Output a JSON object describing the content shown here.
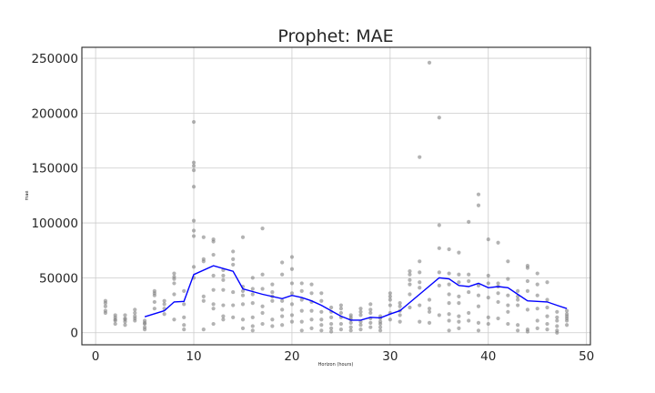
{
  "chart_data": {
    "type": "scatter",
    "title": "Prophet: MAE",
    "xlabel": "Horizon (hours)",
    "ylabel": "mae",
    "xlim": [
      -1.4,
      50.4
    ],
    "ylim": [
      -11000,
      260000
    ],
    "xticks": [
      0,
      10,
      20,
      30,
      40,
      50
    ],
    "yticks": [
      0,
      50000,
      100000,
      150000,
      200000,
      250000
    ],
    "grid": true,
    "colors": {
      "points": "#808080",
      "line": "#0000ff"
    },
    "points": [
      [
        1,
        20000
      ],
      [
        1,
        24000
      ],
      [
        1,
        27000
      ],
      [
        1,
        29000
      ],
      [
        1,
        18000
      ],
      [
        2,
        8000
      ],
      [
        2,
        12000
      ],
      [
        2,
        14000
      ],
      [
        2,
        16000
      ],
      [
        2,
        11000
      ],
      [
        3,
        7000
      ],
      [
        3,
        10000
      ],
      [
        3,
        13000
      ],
      [
        3,
        16000
      ],
      [
        3,
        12000
      ],
      [
        4,
        11000
      ],
      [
        4,
        15000
      ],
      [
        4,
        18000
      ],
      [
        4,
        21000
      ],
      [
        4,
        13000
      ],
      [
        5,
        5000
      ],
      [
        5,
        8000
      ],
      [
        5,
        11000
      ],
      [
        5,
        3000
      ],
      [
        5,
        9000
      ],
      [
        6,
        28000
      ],
      [
        6,
        34000
      ],
      [
        6,
        36000
      ],
      [
        6,
        38000
      ],
      [
        6,
        22000
      ],
      [
        7,
        17000
      ],
      [
        7,
        22000
      ],
      [
        7,
        26000
      ],
      [
        7,
        29000
      ],
      [
        8,
        12000
      ],
      [
        8,
        35000
      ],
      [
        8,
        45000
      ],
      [
        8,
        49000
      ],
      [
        8,
        51000
      ],
      [
        8,
        54000
      ],
      [
        9,
        3000
      ],
      [
        9,
        7000
      ],
      [
        9,
        14000
      ],
      [
        9,
        26000
      ],
      [
        9,
        38000
      ],
      [
        10,
        192000
      ],
      [
        10,
        155000
      ],
      [
        10,
        152000
      ],
      [
        10,
        148000
      ],
      [
        10,
        133000
      ],
      [
        10,
        102000
      ],
      [
        10,
        93000
      ],
      [
        10,
        88000
      ],
      [
        10,
        60000
      ],
      [
        10,
        50000
      ],
      [
        11,
        3000
      ],
      [
        11,
        29000
      ],
      [
        11,
        33000
      ],
      [
        11,
        65000
      ],
      [
        11,
        67000
      ],
      [
        11,
        87000
      ],
      [
        12,
        8000
      ],
      [
        12,
        22000
      ],
      [
        12,
        26000
      ],
      [
        12,
        39000
      ],
      [
        12,
        52000
      ],
      [
        12,
        71000
      ],
      [
        12,
        83000
      ],
      [
        12,
        85000
      ],
      [
        13,
        12000
      ],
      [
        13,
        15000
      ],
      [
        13,
        25000
      ],
      [
        13,
        39000
      ],
      [
        13,
        48000
      ],
      [
        13,
        52000
      ],
      [
        13,
        57000
      ],
      [
        14,
        14000
      ],
      [
        14,
        25000
      ],
      [
        14,
        37000
      ],
      [
        14,
        62000
      ],
      [
        14,
        67000
      ],
      [
        14,
        74000
      ],
      [
        15,
        4000
      ],
      [
        15,
        12000
      ],
      [
        15,
        26000
      ],
      [
        15,
        34000
      ],
      [
        15,
        38000
      ],
      [
        15,
        42000
      ],
      [
        15,
        87000
      ],
      [
        16,
        2000
      ],
      [
        16,
        6000
      ],
      [
        16,
        14000
      ],
      [
        16,
        27000
      ],
      [
        16,
        35000
      ],
      [
        16,
        40000
      ],
      [
        16,
        50000
      ],
      [
        17,
        8000
      ],
      [
        17,
        18000
      ],
      [
        17,
        24000
      ],
      [
        17,
        40000
      ],
      [
        17,
        53000
      ],
      [
        17,
        95000
      ],
      [
        18,
        6000
      ],
      [
        18,
        12000
      ],
      [
        18,
        29000
      ],
      [
        18,
        33000
      ],
      [
        18,
        37000
      ],
      [
        18,
        44000
      ],
      [
        19,
        7000
      ],
      [
        19,
        15000
      ],
      [
        19,
        21000
      ],
      [
        19,
        29000
      ],
      [
        19,
        53000
      ],
      [
        19,
        64000
      ],
      [
        20,
        10000
      ],
      [
        20,
        16000
      ],
      [
        20,
        26000
      ],
      [
        20,
        36000
      ],
      [
        20,
        45000
      ],
      [
        20,
        58000
      ],
      [
        20,
        69000
      ],
      [
        21,
        2000
      ],
      [
        21,
        10000
      ],
      [
        21,
        20000
      ],
      [
        21,
        30000
      ],
      [
        21,
        38000
      ],
      [
        21,
        45000
      ],
      [
        22,
        4000
      ],
      [
        22,
        12000
      ],
      [
        22,
        20000
      ],
      [
        22,
        28000
      ],
      [
        22,
        36000
      ],
      [
        22,
        44000
      ],
      [
        23,
        2000
      ],
      [
        23,
        7000
      ],
      [
        23,
        12000
      ],
      [
        23,
        19000
      ],
      [
        23,
        29000
      ],
      [
        23,
        36000
      ],
      [
        24,
        1000
      ],
      [
        24,
        4000
      ],
      [
        24,
        8000
      ],
      [
        24,
        14000
      ],
      [
        24,
        19000
      ],
      [
        24,
        23000
      ],
      [
        25,
        3000
      ],
      [
        25,
        8000
      ],
      [
        25,
        14000
      ],
      [
        25,
        18000
      ],
      [
        25,
        22000
      ],
      [
        25,
        25000
      ],
      [
        26,
        2000
      ],
      [
        26,
        5000
      ],
      [
        26,
        9000
      ],
      [
        26,
        12000
      ],
      [
        26,
        14000
      ],
      [
        26,
        16000
      ],
      [
        27,
        3000
      ],
      [
        27,
        7000
      ],
      [
        27,
        10000
      ],
      [
        27,
        16000
      ],
      [
        27,
        19000
      ],
      [
        27,
        22000
      ],
      [
        28,
        5000
      ],
      [
        28,
        9000
      ],
      [
        28,
        13000
      ],
      [
        28,
        18000
      ],
      [
        28,
        21000
      ],
      [
        28,
        26000
      ],
      [
        29,
        2000
      ],
      [
        29,
        5000
      ],
      [
        29,
        8000
      ],
      [
        29,
        10000
      ],
      [
        29,
        13000
      ],
      [
        29,
        15000
      ],
      [
        30,
        12000
      ],
      [
        30,
        18000
      ],
      [
        30,
        25000
      ],
      [
        30,
        30000
      ],
      [
        30,
        33000
      ],
      [
        30,
        36000
      ],
      [
        31,
        10000
      ],
      [
        31,
        16000
      ],
      [
        31,
        20000
      ],
      [
        31,
        24000
      ],
      [
        31,
        27000
      ],
      [
        32,
        23000
      ],
      [
        32,
        35000
      ],
      [
        32,
        44000
      ],
      [
        32,
        48000
      ],
      [
        32,
        53000
      ],
      [
        32,
        56000
      ],
      [
        33,
        10000
      ],
      [
        33,
        25000
      ],
      [
        33,
        41000
      ],
      [
        33,
        46000
      ],
      [
        33,
        55000
      ],
      [
        33,
        65000
      ],
      [
        33,
        160000
      ],
      [
        34,
        9000
      ],
      [
        34,
        19000
      ],
      [
        34,
        22000
      ],
      [
        34,
        30000
      ],
      [
        34,
        246000
      ],
      [
        35,
        16000
      ],
      [
        35,
        43000
      ],
      [
        35,
        55000
      ],
      [
        35,
        77000
      ],
      [
        35,
        98000
      ],
      [
        35,
        196000
      ],
      [
        36,
        2000
      ],
      [
        36,
        11000
      ],
      [
        36,
        17000
      ],
      [
        36,
        27000
      ],
      [
        36,
        35000
      ],
      [
        36,
        44000
      ],
      [
        36,
        54000
      ],
      [
        36,
        76000
      ],
      [
        37,
        4000
      ],
      [
        37,
        10000
      ],
      [
        37,
        15000
      ],
      [
        37,
        27000
      ],
      [
        37,
        33000
      ],
      [
        37,
        46000
      ],
      [
        37,
        53000
      ],
      [
        37,
        73000
      ],
      [
        38,
        11000
      ],
      [
        38,
        18000
      ],
      [
        38,
        37000
      ],
      [
        38,
        47000
      ],
      [
        38,
        53000
      ],
      [
        38,
        101000
      ],
      [
        39,
        2000
      ],
      [
        39,
        9000
      ],
      [
        39,
        24000
      ],
      [
        39,
        34000
      ],
      [
        39,
        43000
      ],
      [
        39,
        116000
      ],
      [
        39,
        126000
      ],
      [
        40,
        8000
      ],
      [
        40,
        14000
      ],
      [
        40,
        32000
      ],
      [
        40,
        45000
      ],
      [
        40,
        52000
      ],
      [
        40,
        85000
      ],
      [
        41,
        13000
      ],
      [
        41,
        28000
      ],
      [
        41,
        36000
      ],
      [
        41,
        42000
      ],
      [
        41,
        45000
      ],
      [
        41,
        82000
      ],
      [
        42,
        8000
      ],
      [
        42,
        19000
      ],
      [
        42,
        25000
      ],
      [
        42,
        34000
      ],
      [
        42,
        49000
      ],
      [
        42,
        65000
      ],
      [
        43,
        2000
      ],
      [
        43,
        7000
      ],
      [
        43,
        25000
      ],
      [
        43,
        30000
      ],
      [
        43,
        33000
      ],
      [
        43,
        38000
      ],
      [
        44,
        1000
      ],
      [
        44,
        3000
      ],
      [
        44,
        21000
      ],
      [
        44,
        38000
      ],
      [
        44,
        47000
      ],
      [
        44,
        59000
      ],
      [
        44,
        61000
      ],
      [
        45,
        4000
      ],
      [
        45,
        11000
      ],
      [
        45,
        22000
      ],
      [
        45,
        34000
      ],
      [
        45,
        44000
      ],
      [
        45,
        54000
      ],
      [
        46,
        3000
      ],
      [
        46,
        8000
      ],
      [
        46,
        15000
      ],
      [
        46,
        23000
      ],
      [
        46,
        30000
      ],
      [
        46,
        46000
      ],
      [
        47,
        0
      ],
      [
        47,
        2000
      ],
      [
        47,
        6000
      ],
      [
        47,
        11000
      ],
      [
        47,
        14000
      ],
      [
        47,
        19000
      ],
      [
        48,
        7000
      ],
      [
        48,
        11000
      ],
      [
        48,
        13000
      ],
      [
        48,
        15000
      ],
      [
        48,
        17000
      ],
      [
        48,
        20000
      ]
    ],
    "mean_line": {
      "x": [
        5,
        7,
        8,
        9,
        10,
        12,
        14,
        15,
        17,
        19,
        20,
        21,
        22,
        23,
        24,
        25,
        26,
        27,
        28,
        29,
        30,
        31,
        33,
        35,
        36,
        37,
        38,
        39,
        40,
        41,
        42,
        43,
        44,
        46,
        47,
        48
      ],
      "y": [
        14500,
        20000,
        28000,
        28500,
        53000,
        61000,
        56000,
        40000,
        35000,
        31000,
        34000,
        32000,
        29000,
        25000,
        20000,
        15000,
        11500,
        11500,
        14000,
        13500,
        17000,
        20000,
        35000,
        50000,
        49000,
        43000,
        42000,
        45000,
        41000,
        42000,
        41000,
        35000,
        29000,
        28000,
        25000,
        22000
      ]
    }
  }
}
